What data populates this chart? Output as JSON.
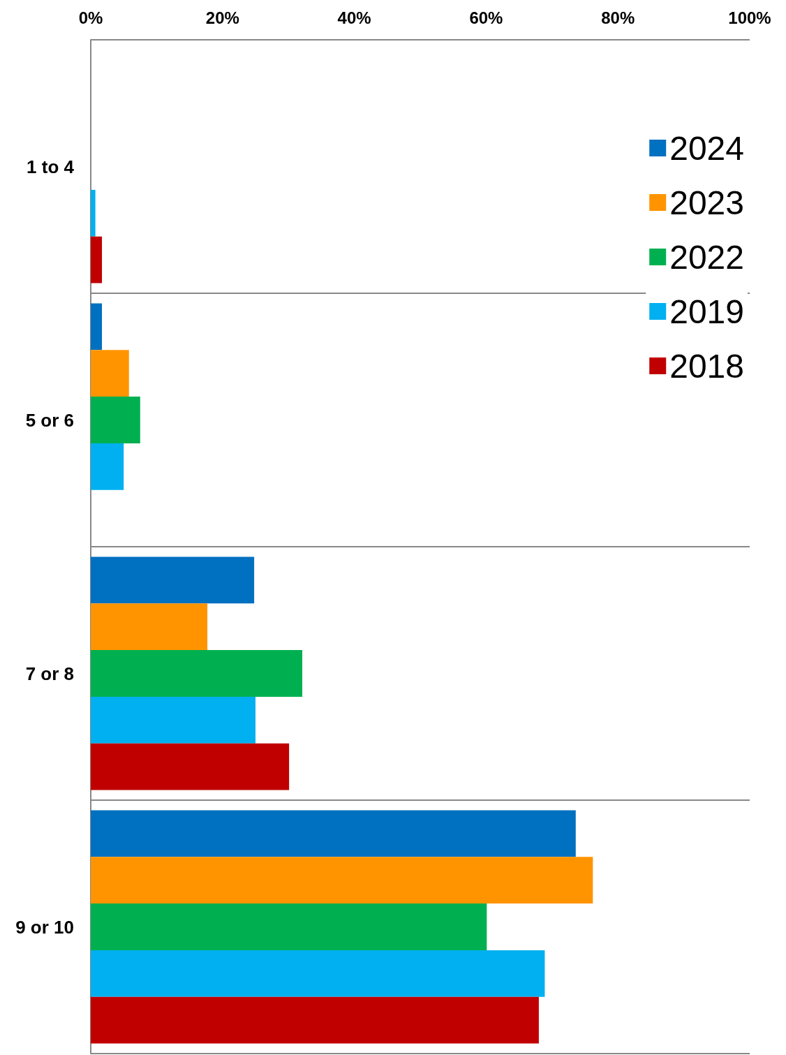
{
  "chart_data": {
    "type": "bar",
    "orientation": "horizontal",
    "categories": [
      "1 to 4",
      "5 or 6",
      "7 or 8",
      "9 or 10"
    ],
    "series": [
      {
        "name": "2024",
        "color": "#0070c0",
        "values": [
          0,
          1.7,
          24.8,
          73.6
        ]
      },
      {
        "name": "2023",
        "color": "#ff9400",
        "values": [
          0,
          5.8,
          17.7,
          76.2
        ]
      },
      {
        "name": "2022",
        "color": "#00b050",
        "values": [
          0,
          7.5,
          32.1,
          60.1
        ]
      },
      {
        "name": "2019",
        "color": "#00b0f0",
        "values": [
          0.7,
          5,
          25,
          68.9
        ]
      },
      {
        "name": "2018",
        "color": "#c00000",
        "values": [
          1.7,
          0,
          30.1,
          68
        ]
      }
    ],
    "xlim": [
      0,
      100
    ],
    "xticks": [
      {
        "value": 0,
        "label": "0%"
      },
      {
        "value": 20,
        "label": "20%"
      },
      {
        "value": 40,
        "label": "40%"
      },
      {
        "value": 60,
        "label": "60%"
      },
      {
        "value": 80,
        "label": "80%"
      },
      {
        "value": 100,
        "label": "100%"
      }
    ],
    "grid": "y",
    "legend": "top right"
  }
}
